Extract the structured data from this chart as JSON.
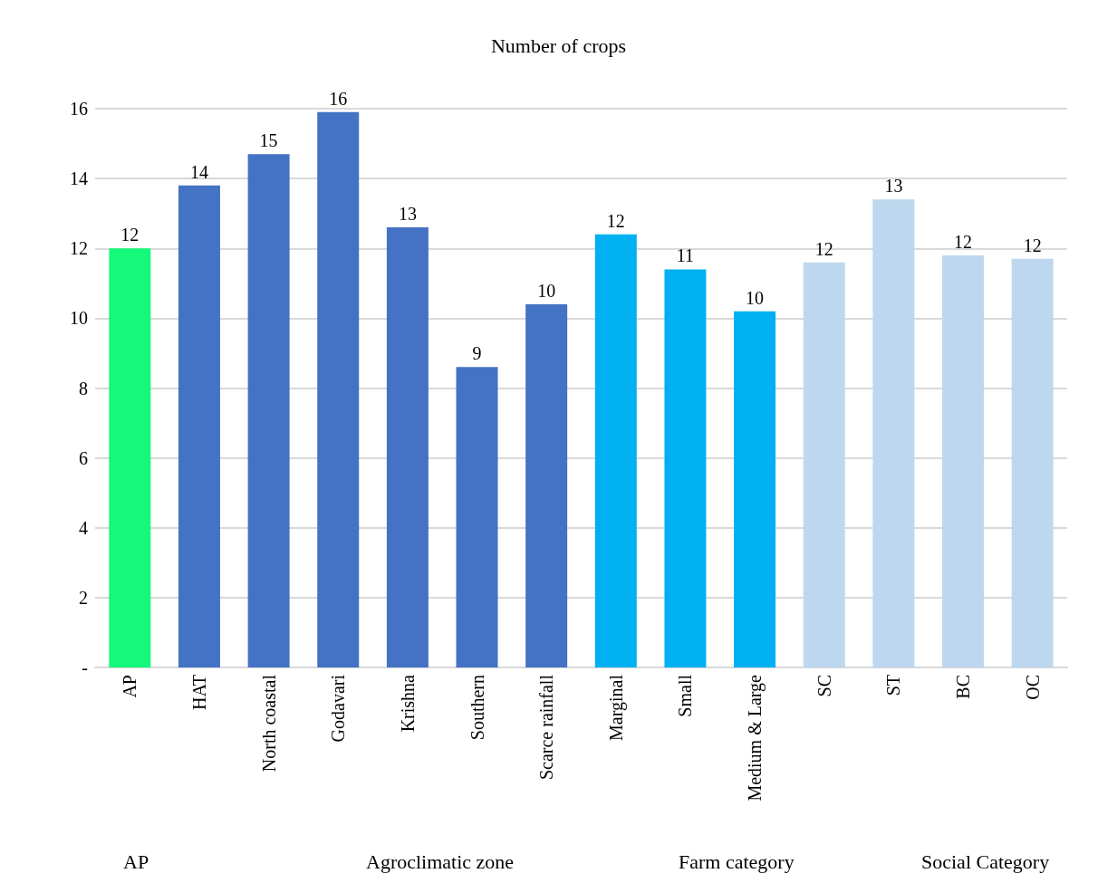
{
  "chart_data": {
    "type": "bar",
    "title": "Number of crops",
    "categories": [
      "AP",
      "HAT",
      "North coastal",
      "Godavari",
      "Krishna",
      "Southern",
      "Scarce rainfall",
      "Marginal",
      "Small",
      "Medium & Large",
      "SC",
      "ST",
      "BC",
      "OC"
    ],
    "values": [
      12.0,
      13.8,
      14.7,
      15.9,
      12.6,
      8.6,
      10.4,
      12.4,
      11.4,
      10.2,
      11.6,
      13.4,
      11.8,
      11.7
    ],
    "value_labels": [
      "12",
      "14",
      "15",
      "16",
      "13",
      "9",
      "10",
      "12",
      "11",
      "10",
      "12",
      "13",
      "12",
      "12"
    ],
    "colors": [
      "#14f97a",
      "#4472c4",
      "#4472c4",
      "#4472c4",
      "#4472c4",
      "#4472c4",
      "#4472c4",
      "#00b0f0",
      "#00b0f0",
      "#00b0f0",
      "#bdd7ee",
      "#bdd7ee",
      "#bdd7ee",
      "#bdd7ee"
    ],
    "ylim": [
      0,
      16
    ],
    "yticks": [
      {
        "value": 0,
        "label": "-"
      },
      2,
      4,
      6,
      8,
      10,
      12,
      14,
      16
    ],
    "grid": "y",
    "annotations": [
      "AP",
      "Agroclimatic zone",
      "Farm category",
      "Social Category"
    ]
  }
}
